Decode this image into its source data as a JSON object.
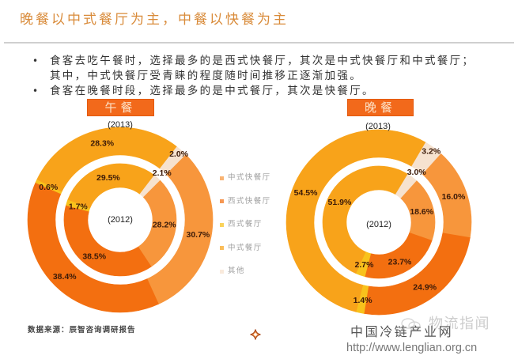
{
  "page": {
    "title": "晚餐以中式餐厅为主，中餐以快餐为主"
  },
  "bullets": [
    {
      "lines": [
        "食客去吃午餐时，选择最多的是西式快餐厅，其次是中式快餐厅和中式餐厅；",
        "其中，中式快餐厅受青睐的程度随时间推移正逐渐加强。"
      ]
    },
    {
      "lines": [
        "食客在晚餐时段，选择最多的是中式餐厅，其次是快餐厅。"
      ]
    }
  ],
  "bullet_symbol": "•",
  "chart_data": [
    {
      "type": "pie",
      "variant": "donut",
      "title": "午餐",
      "categories": [
        "中式快餐厅",
        "西式快餐厅",
        "西式餐厅",
        "中式餐厅",
        "其他"
      ],
      "colors": [
        "#f7963c",
        "#f36f10",
        "#f8c21c",
        "#f8a31a",
        "#f6e2cf"
      ],
      "legend": "right",
      "series": [
        {
          "name": "2013",
          "ring": "outer",
          "ring_label": "(2013)",
          "values": [
            30.7,
            38.4,
            0.6,
            28.3,
            2.0
          ],
          "labels": [
            "30.7%",
            "38.4%",
            "0.6%",
            "28.3%",
            "2.0%"
          ]
        },
        {
          "name": "2012",
          "ring": "inner",
          "ring_label": "(2012)",
          "values": [
            28.2,
            38.5,
            1.7,
            29.5,
            2.1
          ],
          "labels": [
            "28.2%",
            "38.5%",
            "1.7%",
            "29.5%",
            "2.1%"
          ]
        }
      ]
    },
    {
      "type": "pie",
      "variant": "donut",
      "title": "晚餐",
      "categories": [
        "中式快餐厅",
        "西式快餐厅",
        "西式餐厅",
        "中式餐厅",
        "其他"
      ],
      "colors": [
        "#f7963c",
        "#f36f10",
        "#f8c21c",
        "#f8a31a",
        "#f6e2cf"
      ],
      "legend": "left",
      "series": [
        {
          "name": "2013",
          "ring": "outer",
          "ring_label": "(2013)",
          "values": [
            16.0,
            24.9,
            1.4,
            54.5,
            3.2
          ],
          "labels": [
            "16.0%",
            "24.9%",
            "1.4%",
            "54.5%",
            "3.2%"
          ]
        },
        {
          "name": "2012",
          "ring": "inner",
          "ring_label": "(2012)",
          "values": [
            18.6,
            23.7,
            2.7,
            51.9,
            3.0
          ],
          "labels": [
            "18.6%",
            "23.7%",
            "2.7%",
            "51.9%",
            "3.0%"
          ]
        }
      ]
    }
  ],
  "source": "数据来源：辰智咨询调研报告",
  "watermarks": {
    "wechat_account": "物流指闻",
    "site_name": "中国冷链产业网",
    "site_url": "http://www.lenglian.org.cn"
  },
  "icons": {
    "decor": "four-point-star-icon",
    "wechat": "wechat-icon"
  }
}
